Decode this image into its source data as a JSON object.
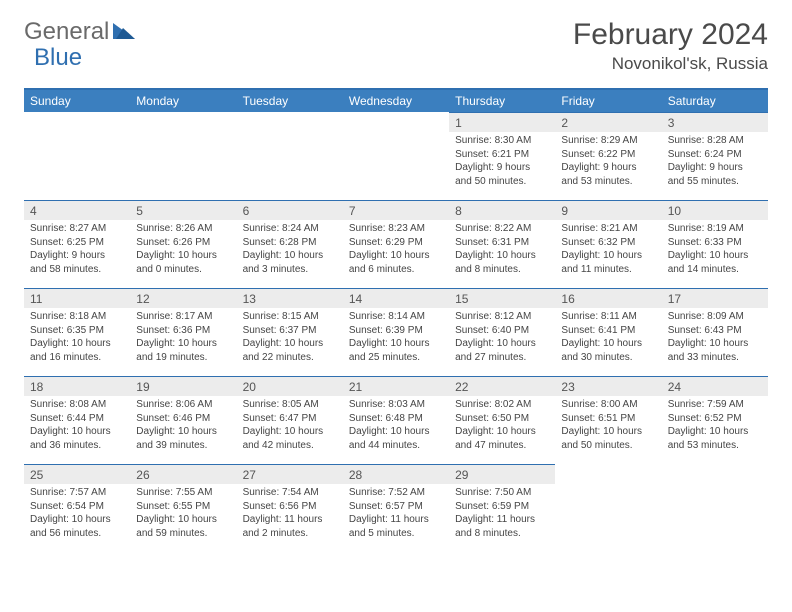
{
  "logo": {
    "general": "General",
    "blue": "Blue"
  },
  "title": "February 2024",
  "location": "Novonikol'sk, Russia",
  "colors": {
    "header_bg": "#3b7fbf",
    "header_border": "#2f6fb0",
    "daynum_bg": "#ececec",
    "text": "#454545",
    "logo_gray": "#6a6a6a",
    "logo_blue": "#2f6fb0"
  },
  "day_headers": [
    "Sunday",
    "Monday",
    "Tuesday",
    "Wednesday",
    "Thursday",
    "Friday",
    "Saturday"
  ],
  "weeks": [
    [
      null,
      null,
      null,
      null,
      {
        "n": "1",
        "sr": "8:30 AM",
        "ss": "6:21 PM",
        "dl": "9 hours and 50 minutes."
      },
      {
        "n": "2",
        "sr": "8:29 AM",
        "ss": "6:22 PM",
        "dl": "9 hours and 53 minutes."
      },
      {
        "n": "3",
        "sr": "8:28 AM",
        "ss": "6:24 PM",
        "dl": "9 hours and 55 minutes."
      }
    ],
    [
      {
        "n": "4",
        "sr": "8:27 AM",
        "ss": "6:25 PM",
        "dl": "9 hours and 58 minutes."
      },
      {
        "n": "5",
        "sr": "8:26 AM",
        "ss": "6:26 PM",
        "dl": "10 hours and 0 minutes."
      },
      {
        "n": "6",
        "sr": "8:24 AM",
        "ss": "6:28 PM",
        "dl": "10 hours and 3 minutes."
      },
      {
        "n": "7",
        "sr": "8:23 AM",
        "ss": "6:29 PM",
        "dl": "10 hours and 6 minutes."
      },
      {
        "n": "8",
        "sr": "8:22 AM",
        "ss": "6:31 PM",
        "dl": "10 hours and 8 minutes."
      },
      {
        "n": "9",
        "sr": "8:21 AM",
        "ss": "6:32 PM",
        "dl": "10 hours and 11 minutes."
      },
      {
        "n": "10",
        "sr": "8:19 AM",
        "ss": "6:33 PM",
        "dl": "10 hours and 14 minutes."
      }
    ],
    [
      {
        "n": "11",
        "sr": "8:18 AM",
        "ss": "6:35 PM",
        "dl": "10 hours and 16 minutes."
      },
      {
        "n": "12",
        "sr": "8:17 AM",
        "ss": "6:36 PM",
        "dl": "10 hours and 19 minutes."
      },
      {
        "n": "13",
        "sr": "8:15 AM",
        "ss": "6:37 PM",
        "dl": "10 hours and 22 minutes."
      },
      {
        "n": "14",
        "sr": "8:14 AM",
        "ss": "6:39 PM",
        "dl": "10 hours and 25 minutes."
      },
      {
        "n": "15",
        "sr": "8:12 AM",
        "ss": "6:40 PM",
        "dl": "10 hours and 27 minutes."
      },
      {
        "n": "16",
        "sr": "8:11 AM",
        "ss": "6:41 PM",
        "dl": "10 hours and 30 minutes."
      },
      {
        "n": "17",
        "sr": "8:09 AM",
        "ss": "6:43 PM",
        "dl": "10 hours and 33 minutes."
      }
    ],
    [
      {
        "n": "18",
        "sr": "8:08 AM",
        "ss": "6:44 PM",
        "dl": "10 hours and 36 minutes."
      },
      {
        "n": "19",
        "sr": "8:06 AM",
        "ss": "6:46 PM",
        "dl": "10 hours and 39 minutes."
      },
      {
        "n": "20",
        "sr": "8:05 AM",
        "ss": "6:47 PM",
        "dl": "10 hours and 42 minutes."
      },
      {
        "n": "21",
        "sr": "8:03 AM",
        "ss": "6:48 PM",
        "dl": "10 hours and 44 minutes."
      },
      {
        "n": "22",
        "sr": "8:02 AM",
        "ss": "6:50 PM",
        "dl": "10 hours and 47 minutes."
      },
      {
        "n": "23",
        "sr": "8:00 AM",
        "ss": "6:51 PM",
        "dl": "10 hours and 50 minutes."
      },
      {
        "n": "24",
        "sr": "7:59 AM",
        "ss": "6:52 PM",
        "dl": "10 hours and 53 minutes."
      }
    ],
    [
      {
        "n": "25",
        "sr": "7:57 AM",
        "ss": "6:54 PM",
        "dl": "10 hours and 56 minutes."
      },
      {
        "n": "26",
        "sr": "7:55 AM",
        "ss": "6:55 PM",
        "dl": "10 hours and 59 minutes."
      },
      {
        "n": "27",
        "sr": "7:54 AM",
        "ss": "6:56 PM",
        "dl": "11 hours and 2 minutes."
      },
      {
        "n": "28",
        "sr": "7:52 AM",
        "ss": "6:57 PM",
        "dl": "11 hours and 5 minutes."
      },
      {
        "n": "29",
        "sr": "7:50 AM",
        "ss": "6:59 PM",
        "dl": "11 hours and 8 minutes."
      },
      null,
      null
    ]
  ],
  "labels": {
    "sunrise": "Sunrise: ",
    "sunset": "Sunset: ",
    "daylight": "Daylight: "
  }
}
